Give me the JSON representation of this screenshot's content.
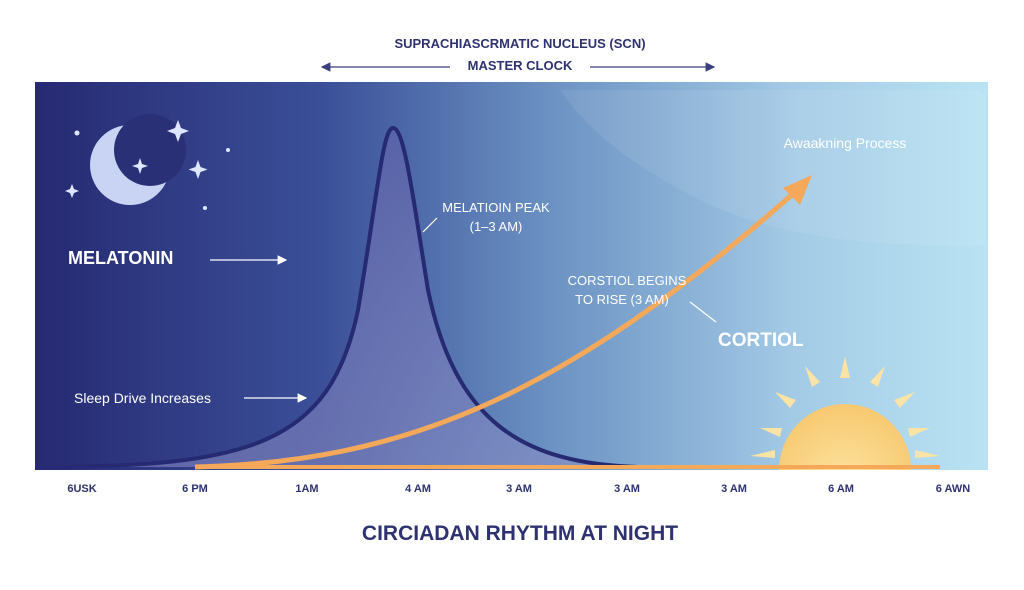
{
  "header": {
    "title": "SUPRACHIASCRMATIC NUCLEUS (SCN)",
    "subtitle": "MASTER CLOCK"
  },
  "labels": {
    "melatonin": "MELATONIN",
    "sleep_drive": "Sleep Drive Increases",
    "melatonin_peak": [
      "MELATIOIN PEAK",
      "(1–3 AM)"
    ],
    "cortisol_begins": [
      "CORSTIOL BEGINS",
      "TO RISE (3 AM)"
    ],
    "cortisol": "CORTIOL",
    "awakening": "Awaakning Process"
  },
  "time_axis": [
    "6USK",
    "6 PM",
    "1AM",
    "4 AM",
    "3 AM",
    "3 AM",
    "3 AM",
    "6 AM",
    "6 AWN"
  ],
  "footer": {
    "title": "CIRCIADAN RHYTHM AT NIGHT"
  }
}
